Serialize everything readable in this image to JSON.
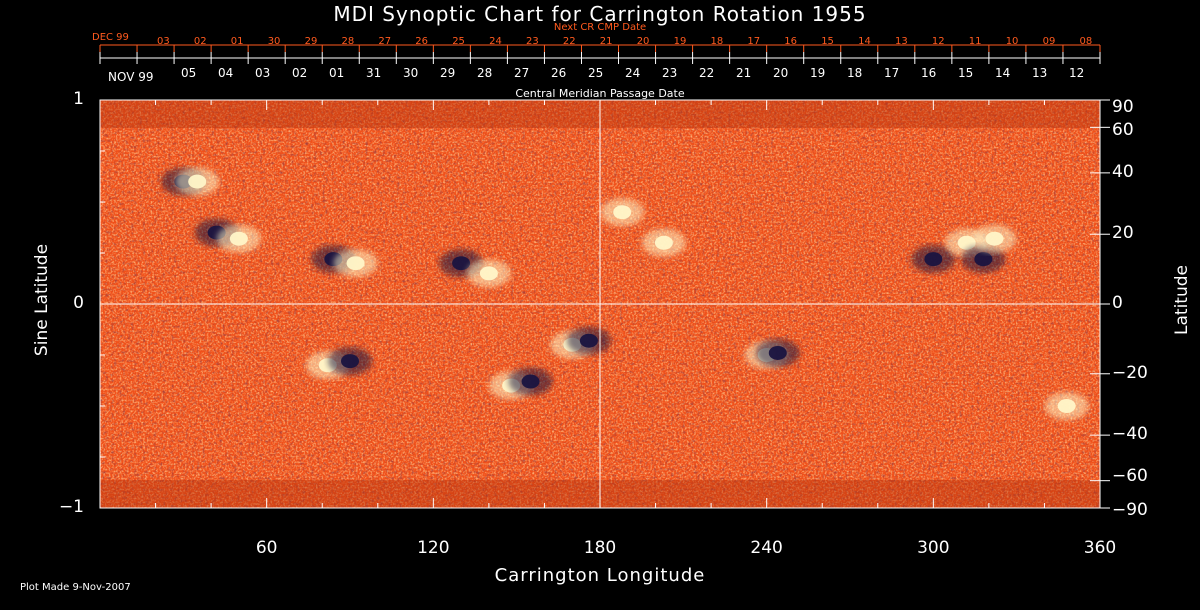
{
  "title": "MDI Synoptic Chart for Carrington Rotation 1955",
  "top_axis": {
    "next_label": "Next CR CMP Date",
    "start_month_label": "DEC 99",
    "dates": [
      "03",
      "02",
      "01",
      "30",
      "29",
      "28",
      "27",
      "26",
      "25",
      "24",
      "23",
      "22",
      "21",
      "20",
      "19",
      "18",
      "17",
      "16",
      "15",
      "14",
      "13",
      "12",
      "11",
      "10",
      "09",
      "08"
    ]
  },
  "cmp_axis": {
    "month_label": "NOV 99",
    "dates": [
      "05",
      "04",
      "03",
      "02",
      "01",
      "31",
      "30",
      "29",
      "28",
      "27",
      "26",
      "25",
      "24",
      "23",
      "22",
      "21",
      "20",
      "19",
      "18",
      "17",
      "16",
      "15",
      "14",
      "13",
      "12"
    ],
    "label": "Central Meridian Passage Date"
  },
  "chart_data": {
    "type": "heatmap",
    "title": "MDI Synoptic Chart for Carrington Rotation 1955",
    "xlabel": "Carrington Longitude",
    "ylabel": "Sine Latitude",
    "ylabel_right": "Latitude",
    "xlim": [
      0,
      360
    ],
    "ylim": [
      -1,
      1
    ],
    "x_ticks": [
      "60",
      "120",
      "180",
      "240",
      "300",
      "360"
    ],
    "y_ticks_left": [
      {
        "v": 1,
        "label": "1"
      },
      {
        "v": 0,
        "label": "0"
      },
      {
        "v": -1,
        "label": "−1"
      }
    ],
    "y_ticks_right": [
      {
        "deg": 90,
        "label": "90"
      },
      {
        "deg": 60,
        "label": "60"
      },
      {
        "deg": 40,
        "label": "40"
      },
      {
        "deg": 20,
        "label": "20"
      },
      {
        "deg": 0,
        "label": "0"
      },
      {
        "deg": -20,
        "label": "−20"
      },
      {
        "deg": -40,
        "label": "−40"
      },
      {
        "deg": -60,
        "label": "−60"
      },
      {
        "deg": -90,
        "label": "−90"
      }
    ],
    "gridlines": {
      "x": 180,
      "y": 0
    },
    "colors": {
      "background_field": "#f0501a",
      "dark": "#1a1440",
      "bright": "#fff6c8"
    },
    "regions": [
      {
        "lon": 30,
        "sinlat": 0.6,
        "polarity": "neg"
      },
      {
        "lon": 35,
        "sinlat": 0.6,
        "polarity": "pos"
      },
      {
        "lon": 42,
        "sinlat": 0.35,
        "polarity": "neg"
      },
      {
        "lon": 50,
        "sinlat": 0.32,
        "polarity": "pos"
      },
      {
        "lon": 84,
        "sinlat": 0.22,
        "polarity": "neg"
      },
      {
        "lon": 92,
        "sinlat": 0.2,
        "polarity": "pos"
      },
      {
        "lon": 130,
        "sinlat": 0.2,
        "polarity": "neg"
      },
      {
        "lon": 140,
        "sinlat": 0.15,
        "polarity": "pos"
      },
      {
        "lon": 82,
        "sinlat": -0.3,
        "polarity": "pos"
      },
      {
        "lon": 90,
        "sinlat": -0.28,
        "polarity": "neg"
      },
      {
        "lon": 148,
        "sinlat": -0.4,
        "polarity": "pos"
      },
      {
        "lon": 155,
        "sinlat": -0.38,
        "polarity": "neg"
      },
      {
        "lon": 170,
        "sinlat": -0.2,
        "polarity": "pos"
      },
      {
        "lon": 176,
        "sinlat": -0.18,
        "polarity": "neg"
      },
      {
        "lon": 188,
        "sinlat": 0.45,
        "polarity": "pos"
      },
      {
        "lon": 203,
        "sinlat": 0.3,
        "polarity": "pos"
      },
      {
        "lon": 240,
        "sinlat": -0.25,
        "polarity": "pos"
      },
      {
        "lon": 244,
        "sinlat": -0.24,
        "polarity": "neg"
      },
      {
        "lon": 300,
        "sinlat": 0.22,
        "polarity": "neg"
      },
      {
        "lon": 312,
        "sinlat": 0.3,
        "polarity": "pos"
      },
      {
        "lon": 318,
        "sinlat": 0.22,
        "polarity": "neg"
      },
      {
        "lon": 322,
        "sinlat": 0.32,
        "polarity": "pos"
      },
      {
        "lon": 348,
        "sinlat": -0.5,
        "polarity": "pos"
      }
    ]
  },
  "footer": {
    "plot_made": "Plot Made  9-Nov-2007"
  }
}
